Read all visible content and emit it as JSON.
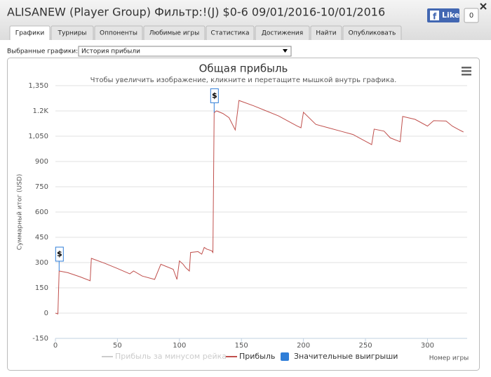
{
  "header": {
    "title": "ALISANEW (Player Group) Фильтр:!(J) $0-6 09/01/2016-10/01/2016"
  },
  "like": {
    "label": "Like",
    "count": "0"
  },
  "tabs": [
    "Графики",
    "Турниры",
    "Оппоненты",
    "Любимые игры",
    "Статистика",
    "Достижения",
    "Найти",
    "Опубликовать"
  ],
  "selector": {
    "label": "Выбранные графики:",
    "value": "История прибыли"
  },
  "chart_data": {
    "type": "line",
    "title": "Общая прибыль",
    "subtitle": "Чтобы увеличить изображение, кликните и перетащите мышкой внутрь графика.",
    "ylabel": "Суммарный итог (USD)",
    "xlabel": "Номер игры",
    "xlim": [
      0,
      332
    ],
    "xticks": [
      0,
      50,
      100,
      150,
      200,
      250,
      300
    ],
    "ylim": [
      -150,
      1350
    ],
    "yticks": [
      -150,
      0,
      150,
      300,
      450,
      600,
      750,
      900,
      {
        "value": 1050,
        "label": "1,050"
      },
      {
        "value": 1200,
        "label": "1.2K"
      },
      {
        "value": 1350,
        "label": "1,350"
      }
    ],
    "grid": true,
    "series": [
      {
        "name": "Прибыль за минусом рейка",
        "color": "#cccccc",
        "hidden": true
      },
      {
        "name": "Прибыль",
        "color": "#c0504d",
        "x": [
          0,
          2,
          3,
          10,
          20,
          28,
          29,
          40,
          50,
          60,
          63,
          70,
          80,
          85,
          90,
          95,
          98,
          100,
          103,
          105,
          108,
          109,
          115,
          118,
          120,
          122,
          126,
          127,
          128,
          130,
          135,
          140,
          145,
          148,
          160,
          170,
          180,
          190,
          195,
          198,
          200,
          210,
          220,
          230,
          240,
          250,
          255,
          257,
          265,
          270,
          278,
          280,
          290,
          300,
          305,
          315,
          320,
          325,
          329
        ],
        "values": [
          0,
          -5,
          250,
          240,
          215,
          192,
          325,
          295,
          265,
          233,
          250,
          220,
          200,
          290,
          275,
          260,
          200,
          310,
          290,
          270,
          250,
          360,
          365,
          350,
          390,
          380,
          370,
          360,
          1190,
          1200,
          1185,
          1160,
          1087,
          1262,
          1230,
          1200,
          1170,
          1130,
          1110,
          1100,
          1192,
          1120,
          1100,
          1080,
          1060,
          1020,
          1000,
          1092,
          1080,
          1040,
          1017,
          1167,
          1150,
          1110,
          1142,
          1140,
          1110,
          1090,
          1075
        ]
      },
      {
        "name": "Значительные выигрыши",
        "color": "#2f7ed8",
        "type": "flags",
        "x": [
          3,
          128
        ],
        "values": [
          250,
          1190
        ],
        "labels": [
          "$",
          "$"
        ]
      }
    ]
  }
}
